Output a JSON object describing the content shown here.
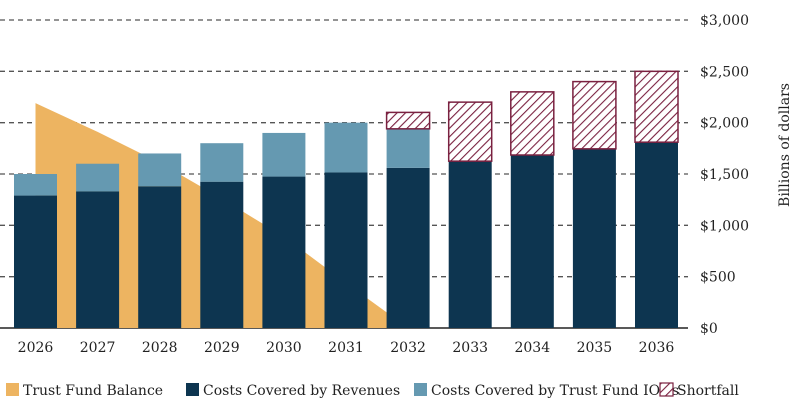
{
  "chart_data": {
    "type": "bar",
    "stacked": true,
    "categories": [
      "2026",
      "2027",
      "2028",
      "2029",
      "2030",
      "2031",
      "2032",
      "2033",
      "2034",
      "2035",
      "2036"
    ],
    "series": [
      {
        "name": "Costs Covered by Revenues",
        "color": "#0D3550",
        "values": [
          1290,
          1330,
          1380,
          1425,
          1475,
          1515,
          1560,
          1625,
          1685,
          1745,
          1810
        ]
      },
      {
        "name": "Costs Covered by Trust Fund IOUs",
        "color": "#6599B1",
        "values": [
          210,
          270,
          320,
          375,
          425,
          485,
          380,
          0,
          0,
          0,
          0
        ]
      },
      {
        "name": "Shortfall",
        "color": "#7A2140",
        "pattern": "hatch",
        "values": [
          0,
          0,
          0,
          0,
          0,
          0,
          160,
          575,
          615,
          655,
          690
        ]
      }
    ],
    "area_series": {
      "name": "Trust Fund Balance",
      "color": "#EDB461",
      "type": "area",
      "values": [
        2190,
        1910,
        1610,
        1260,
        890,
        440,
        0
      ]
    },
    "ylabel": "Billions of dollars",
    "ylim": [
      0,
      3000
    ],
    "yticks": [
      "$0",
      "$500",
      "$1,000",
      "$1,500",
      "$2,000",
      "$2,500",
      "$3,000"
    ],
    "yaxis_side": "right",
    "grid": "dashed horizontal",
    "legend": "bottom",
    "legend_entries": [
      "Trust Fund Balance",
      "Costs Covered by Revenues",
      "Costs Covered by Trust Fund IOUs",
      "Shortfall"
    ]
  }
}
